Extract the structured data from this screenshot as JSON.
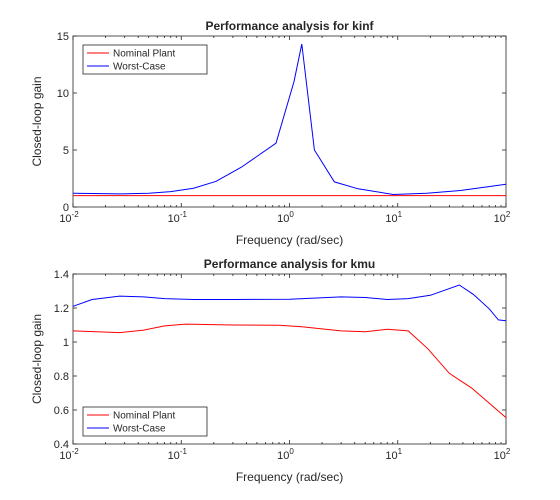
{
  "chart_data": [
    {
      "type": "line",
      "title": "Performance analysis for kinf",
      "xlabel": "Frequency (rad/sec)",
      "ylabel": "Closed-loop gain",
      "xscale": "log",
      "xlim": [
        0.01,
        100
      ],
      "ylim": [
        0,
        15
      ],
      "xticks": [
        {
          "base": "10",
          "exp": "-2"
        },
        {
          "base": "10",
          "exp": "-1"
        },
        {
          "base": "10",
          "exp": "0"
        },
        {
          "base": "10",
          "exp": "1"
        },
        {
          "base": "10",
          "exp": "2"
        }
      ],
      "yticks": [
        "0",
        "5",
        "10",
        "15"
      ],
      "grid": false,
      "legend": "top-left",
      "series": [
        {
          "name": "Nominal Plant",
          "color": "#ff0000",
          "x": [
            0.01,
            100
          ],
          "y": [
            1.0,
            1.0
          ]
        },
        {
          "name": "Worst-Case",
          "color": "#0000ff",
          "x": [
            0.01,
            0.027,
            0.05,
            0.08,
            0.13,
            0.21,
            0.36,
            0.75,
            1.1,
            1.3,
            1.7,
            2.6,
            4.3,
            9.1,
            18.5,
            38,
            100
          ],
          "y": [
            1.2,
            1.15,
            1.2,
            1.35,
            1.65,
            2.25,
            3.5,
            5.6,
            11.0,
            14.3,
            5.0,
            2.2,
            1.6,
            1.1,
            1.2,
            1.45,
            2.0
          ]
        }
      ]
    },
    {
      "type": "line",
      "title": "Performance analysis for kmu",
      "xlabel": "Frequency (rad/sec)",
      "ylabel": "Closed-loop gain",
      "xscale": "log",
      "xlim": [
        0.01,
        100
      ],
      "ylim": [
        0.4,
        1.4
      ],
      "xticks": [
        {
          "base": "10",
          "exp": "-2"
        },
        {
          "base": "10",
          "exp": "-1"
        },
        {
          "base": "10",
          "exp": "0"
        },
        {
          "base": "10",
          "exp": "1"
        },
        {
          "base": "10",
          "exp": "2"
        }
      ],
      "yticks": [
        "0.4",
        "0.6",
        "0.8",
        "1",
        "1.2",
        "1.4"
      ],
      "grid": false,
      "legend": "bottom-left",
      "series": [
        {
          "name": "Nominal Plant",
          "color": "#ff0000",
          "x": [
            0.01,
            0.027,
            0.045,
            0.07,
            0.11,
            0.3,
            0.8,
            1.3,
            3,
            5,
            8,
            12.5,
            19,
            30,
            48,
            100
          ],
          "y": [
            1.065,
            1.055,
            1.07,
            1.095,
            1.105,
            1.1,
            1.098,
            1.09,
            1.065,
            1.06,
            1.075,
            1.065,
            0.96,
            0.815,
            0.73,
            0.555
          ]
        },
        {
          "name": "Worst-Case",
          "color": "#0000ff",
          "x": [
            0.01,
            0.015,
            0.027,
            0.045,
            0.07,
            0.13,
            0.3,
            1,
            3,
            5,
            8,
            12.5,
            20,
            37,
            50,
            70,
            85,
            100
          ],
          "y": [
            1.21,
            1.25,
            1.27,
            1.265,
            1.255,
            1.25,
            1.25,
            1.252,
            1.265,
            1.262,
            1.25,
            1.255,
            1.275,
            1.335,
            1.28,
            1.195,
            1.13,
            1.125
          ]
        }
      ]
    }
  ]
}
